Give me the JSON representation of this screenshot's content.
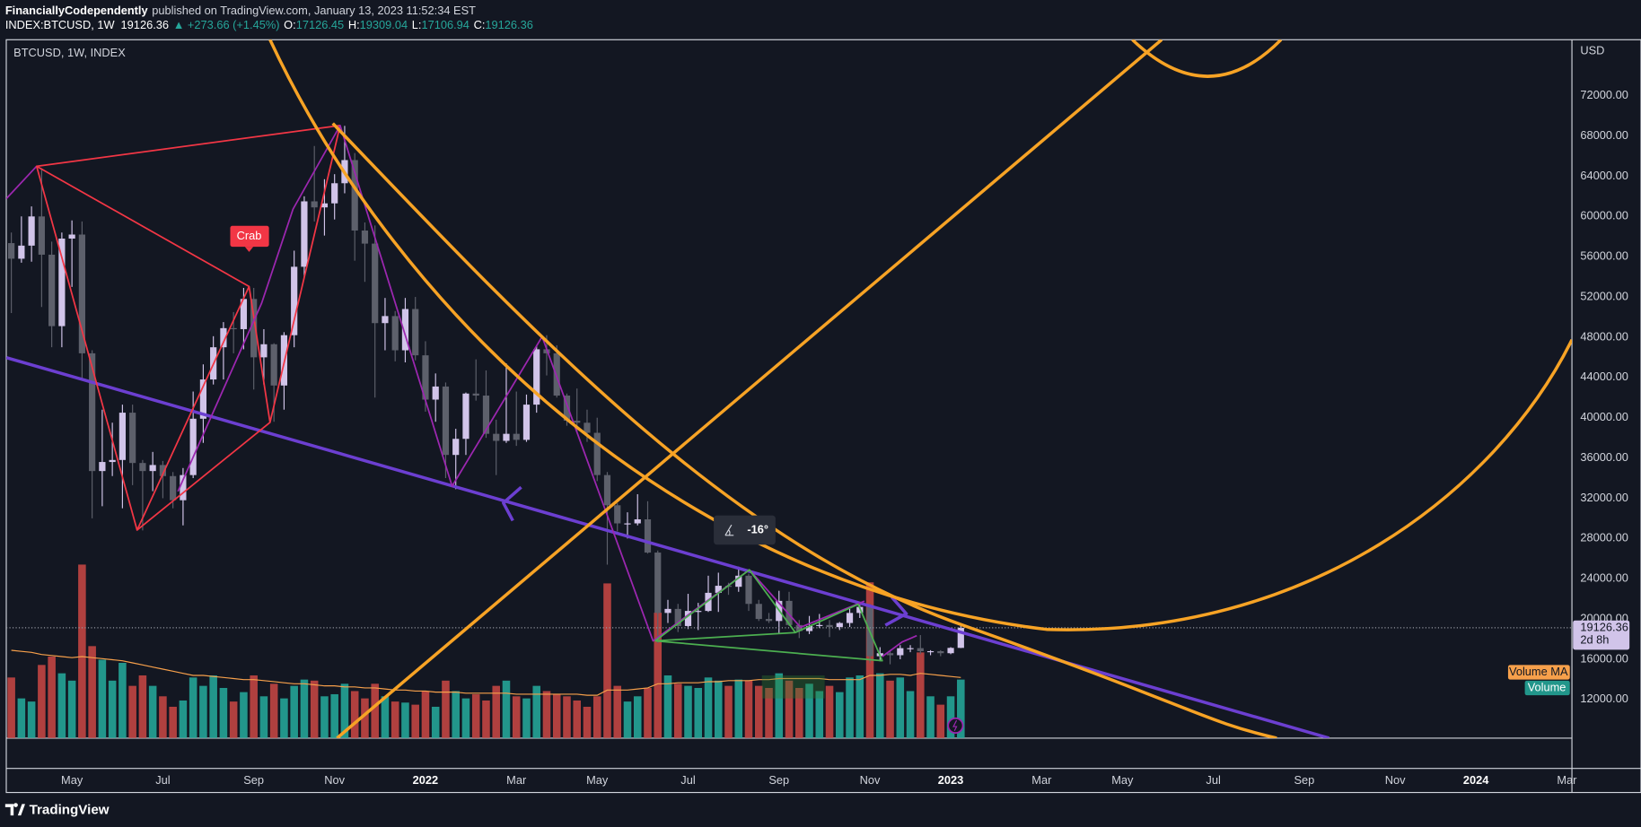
{
  "header": {
    "author": "FinanciallyCodependently",
    "published": "published on TradingView.com, January 13, 2023 11:52:34 EST",
    "symbol": "INDEX:BTCUSD, 1W",
    "last": "19126.36",
    "change": "▲ +273.66 (+1.45%)",
    "ohlc": [
      {
        "label": "O:",
        "value": "17126.45"
      },
      {
        "label": "H:",
        "value": "19309.04"
      },
      {
        "label": "L:",
        "value": "17106.94"
      },
      {
        "label": "C:",
        "value": "19126.36"
      }
    ]
  },
  "chart_data": {
    "type": "candlestick",
    "title": "BTCUSD, 1W, INDEX",
    "y_axis_unit": "USD",
    "categories": [
      null,
      null,
      null,
      null,
      null,
      null,
      "May",
      null,
      null,
      null,
      null,
      null,
      null,
      null,
      null,
      "Jul",
      null,
      null,
      null,
      null,
      null,
      null,
      null,
      null,
      "Sep",
      null,
      null,
      null,
      null,
      null,
      null,
      null,
      "Nov",
      null,
      null,
      null,
      null,
      null,
      null,
      null,
      null,
      "2022",
      null,
      null,
      null,
      null,
      null,
      null,
      null,
      null,
      "Mar",
      null,
      null,
      null,
      null,
      null,
      null,
      null,
      "May",
      null,
      null,
      null,
      null,
      null,
      null,
      null,
      null,
      "Jul",
      null,
      null,
      null,
      null,
      null,
      null,
      null,
      null,
      "Sep",
      null,
      null,
      null,
      null,
      null,
      null,
      null,
      null,
      "Nov",
      null,
      null,
      null,
      null,
      null,
      null,
      null,
      "2023",
      null,
      null,
      null,
      null,
      null,
      null,
      null,
      null,
      "Mar",
      null,
      null,
      null,
      null,
      null,
      null,
      null,
      "May",
      null,
      null,
      null,
      null,
      null,
      null,
      null,
      null,
      "Jul",
      null,
      null,
      null,
      null,
      null,
      null,
      null,
      null,
      "Sep",
      null,
      null,
      null,
      null,
      null,
      null,
      null,
      null,
      "Nov",
      null,
      null,
      null,
      null,
      null,
      null,
      null,
      "2024",
      null,
      null,
      null,
      null,
      null,
      null,
      null,
      null,
      "Mar"
    ],
    "open": [
      57350,
      55800,
      57100,
      60000,
      56200,
      49100,
      57800,
      58200,
      46400,
      34700,
      35600,
      35800,
      40500,
      35500,
      34700,
      35300,
      34200,
      31800,
      34300,
      39900,
      43800,
      47000,
      48900,
      48800,
      51800,
      46000,
      47300,
      43200,
      48200,
      55000,
      61500,
      60900,
      61300,
      63300,
      65600,
      58600,
      57300,
      49400,
      50100,
      46700,
      50800,
      46200,
      41800,
      43100,
      36300,
      37900,
      42400,
      42200,
      38400,
      37700,
      38400,
      37800,
      41300,
      46800,
      46400,
      42200,
      39700,
      39500,
      38500,
      34300,
      31300,
      29500,
      29500,
      29900,
      26600,
      20600,
      21000,
      19300,
      20800,
      20800,
      22600,
      23300,
      23200,
      24300,
      21500,
      20000,
      19800,
      21800,
      19400,
      18800,
      19300,
      19400,
      19200,
      19600,
      20600,
      21200,
      16300,
      16600,
      16400,
      17100,
      17100,
      16800,
      16800,
      16600,
      17126.45,
      null,
      null,
      null,
      null,
      null,
      null,
      null,
      null,
      null,
      null,
      null,
      null,
      null,
      null,
      null,
      null,
      null,
      null,
      null,
      null,
      null,
      null,
      null,
      null,
      null,
      null,
      null,
      null,
      null,
      null,
      null,
      null,
      null,
      null,
      null,
      null,
      null,
      null,
      null,
      null,
      null,
      null,
      null,
      null,
      null,
      null,
      null,
      null,
      null,
      null,
      null,
      null,
      null,
      null,
      null,
      null,
      null,
      null,
      null,
      null
    ],
    "high": [
      58400,
      60000,
      61000,
      64800,
      57500,
      58400,
      59600,
      59500,
      46700,
      40800,
      39500,
      41300,
      41300,
      35800,
      36600,
      35700,
      34600,
      35000,
      42600,
      45300,
      48100,
      49500,
      50500,
      52900,
      52900,
      48800,
      47400,
      48500,
      56600,
      62000,
      67000,
      63700,
      64200,
      69000,
      66300,
      59400,
      59100,
      51900,
      50600,
      51900,
      52000,
      47600,
      44400,
      43500,
      38900,
      42500,
      45800,
      44700,
      39800,
      45400,
      42600,
      42300,
      47200,
      48200,
      47200,
      42400,
      42900,
      40800,
      40000,
      34600,
      31500,
      30600,
      32400,
      31700,
      26800,
      21900,
      21500,
      22500,
      21600,
      24300,
      24600,
      23600,
      25200,
      24500,
      21900,
      20600,
      22800,
      22700,
      19900,
      20300,
      20500,
      19900,
      19700,
      21000,
      21400,
      21500,
      17200,
      16900,
      17400,
      17400,
      18400,
      16900,
      16900,
      17200,
      19309.04,
      null,
      null,
      null,
      null,
      null,
      null,
      null,
      null,
      null,
      null,
      null,
      null,
      null,
      null,
      null,
      null,
      null,
      null,
      null,
      null,
      null,
      null,
      null,
      null,
      null,
      null,
      null,
      null,
      null,
      null,
      null,
      null,
      null,
      null,
      null,
      null,
      null,
      null,
      null,
      null,
      null,
      null,
      null,
      null,
      null,
      null,
      null,
      null,
      null,
      null,
      null,
      null,
      null,
      null,
      null,
      null,
      null,
      null,
      null,
      null
    ],
    "low": [
      50400,
      55400,
      55500,
      51000,
      47000,
      47000,
      53000,
      43800,
      30000,
      31200,
      34200,
      31000,
      33300,
      28800,
      32700,
      32000,
      31000,
      29300,
      34000,
      37500,
      43300,
      43800,
      46400,
      46800,
      42800,
      43300,
      39600,
      40800,
      47000,
      53900,
      59500,
      58100,
      59700,
      62300,
      55600,
      53500,
      42000,
      46700,
      45600,
      45500,
      45700,
      40600,
      39600,
      34000,
      32900,
      36300,
      41700,
      38000,
      34300,
      37500,
      37200,
      37600,
      40500,
      44200,
      42000,
      39200,
      38600,
      37600,
      33700,
      25400,
      28700,
      28000,
      29300,
      26500,
      17600,
      19600,
      18700,
      19000,
      18900,
      20700,
      20700,
      22400,
      22700,
      20800,
      19800,
      19600,
      18600,
      19300,
      18100,
      18500,
      19100,
      18200,
      18900,
      19200,
      20100,
      15600,
      15800,
      15500,
      16000,
      16700,
      16500,
      16400,
      16300,
      16500,
      17106.94,
      null,
      null,
      null,
      null,
      null,
      null,
      null,
      null,
      null,
      null,
      null,
      null,
      null,
      null,
      null,
      null,
      null,
      null,
      null,
      null,
      null,
      null,
      null,
      null,
      null,
      null,
      null,
      null,
      null,
      null,
      null,
      null,
      null,
      null,
      null,
      null,
      null,
      null,
      null,
      null,
      null,
      null,
      null,
      null,
      null,
      null,
      null,
      null,
      null,
      null,
      null,
      null,
      null,
      null,
      null,
      null,
      null,
      null,
      null,
      null
    ],
    "close": [
      55800,
      57100,
      60000,
      56200,
      49100,
      57800,
      58200,
      46400,
      34700,
      35600,
      35800,
      40500,
      35500,
      34700,
      35300,
      34200,
      31800,
      34300,
      39900,
      43800,
      47000,
      48900,
      48800,
      51800,
      46000,
      47300,
      43200,
      48200,
      55000,
      61500,
      60900,
      61300,
      63300,
      65600,
      58600,
      57300,
      49400,
      50100,
      46700,
      50800,
      46200,
      41800,
      43100,
      36300,
      37900,
      42400,
      42200,
      38400,
      37700,
      38400,
      37800,
      41300,
      46800,
      46400,
      42200,
      39700,
      39500,
      38500,
      34300,
      31300,
      29500,
      29500,
      29900,
      26600,
      20600,
      21000,
      19300,
      20800,
      20800,
      22600,
      23300,
      23200,
      24300,
      21500,
      20000,
      19800,
      21800,
      19400,
      18800,
      19300,
      19400,
      19200,
      19600,
      20600,
      21200,
      16300,
      16600,
      16400,
      17100,
      17100,
      16800,
      16800,
      16600,
      17126.45,
      19126.36,
      null,
      null,
      null,
      null,
      null,
      null,
      null,
      null,
      null,
      null,
      null,
      null,
      null,
      null,
      null,
      null,
      null,
      null,
      null,
      null,
      null,
      null,
      null,
      null,
      null,
      null,
      null,
      null,
      null,
      null,
      null,
      null,
      null,
      null,
      null,
      null,
      null,
      null,
      null,
      null,
      null,
      null,
      null,
      null,
      null,
      null,
      null,
      null,
      null,
      null,
      null,
      null,
      null,
      null,
      null,
      null,
      null,
      null,
      null,
      null
    ],
    "volume": [
      58,
      38,
      35,
      70,
      78,
      62,
      55,
      166,
      88,
      75,
      55,
      72,
      50,
      60,
      50,
      40,
      30,
      36,
      58,
      50,
      60,
      48,
      35,
      44,
      60,
      40,
      52,
      38,
      50,
      56,
      55,
      40,
      42,
      52,
      45,
      38,
      52,
      40,
      35,
      34,
      32,
      45,
      30,
      55,
      45,
      38,
      42,
      36,
      50,
      55,
      40,
      38,
      50,
      45,
      42,
      40,
      36,
      30,
      40,
      148,
      50,
      35,
      40,
      48,
      120,
      60,
      52,
      50,
      48,
      58,
      55,
      50,
      56,
      55,
      50,
      48,
      62,
      55,
      48,
      52,
      45,
      50,
      44,
      58,
      60,
      149,
      62,
      55,
      58,
      45,
      82,
      40,
      32,
      40,
      56,
      null,
      null,
      null,
      null,
      null,
      null,
      null,
      null,
      null,
      null,
      null,
      null,
      null,
      null,
      null,
      null,
      null,
      null,
      null,
      null,
      null,
      null,
      null,
      null,
      null,
      null,
      null,
      null,
      null,
      null,
      null,
      null,
      null,
      null,
      null,
      null,
      null,
      null,
      null,
      null,
      null,
      null,
      null,
      null,
      null,
      null,
      null,
      null,
      null,
      null,
      null,
      null,
      null,
      null,
      null,
      null,
      null,
      null,
      null,
      null
    ],
    "volume_ma": [
      84,
      83,
      82,
      80,
      79,
      78,
      77,
      78,
      77,
      76,
      75,
      74,
      72,
      70,
      68,
      66,
      64,
      62,
      60,
      60,
      59,
      58,
      57,
      56,
      56,
      55,
      54,
      53,
      52,
      52,
      51,
      50,
      50,
      49,
      49,
      48,
      48,
      47,
      46,
      46,
      45,
      45,
      44,
      44,
      44,
      43,
      43,
      43,
      43,
      43,
      42,
      42,
      42,
      42,
      42,
      42,
      42,
      41,
      41,
      46,
      46,
      46,
      47,
      48,
      52,
      52,
      53,
      53,
      53,
      54,
      54,
      55,
      55,
      55,
      56,
      56,
      57,
      57,
      57,
      57,
      57,
      56,
      56,
      56,
      56,
      60,
      60,
      61,
      61,
      60,
      62,
      61,
      60,
      59,
      58,
      null,
      null,
      null,
      null,
      null,
      null,
      null,
      null,
      null,
      null,
      null,
      null,
      null,
      null,
      null,
      null,
      null,
      null,
      null,
      null,
      null,
      null,
      null,
      null,
      null,
      null,
      null,
      null,
      null,
      null,
      null,
      null,
      null,
      null,
      null,
      null,
      null,
      null,
      null,
      null,
      null,
      null,
      null,
      null,
      null,
      null,
      null,
      null,
      null,
      null,
      null,
      null,
      null,
      null,
      null,
      null,
      null,
      null,
      null,
      null
    ],
    "ylim": [
      8160,
      77560
    ],
    "yticks": [
      {
        "value": 12000,
        "label": "12000.00"
      },
      {
        "value": 16000,
        "label": "16000.00"
      },
      {
        "value": 20000,
        "label": "20000.00"
      },
      {
        "value": 24000,
        "label": "24000.00"
      },
      {
        "value": 28000,
        "label": "28000.00"
      },
      {
        "value": 32000,
        "label": "32000.00"
      },
      {
        "value": 36000,
        "label": "36000.00"
      },
      {
        "value": 40000,
        "label": "40000.00"
      },
      {
        "value": 44000,
        "label": "44000.00"
      },
      {
        "value": 48000,
        "label": "48000.00"
      },
      {
        "value": 52000,
        "label": "52000.00"
      },
      {
        "value": 56000,
        "label": "56000.00"
      },
      {
        "value": 60000,
        "label": "60000.00"
      },
      {
        "value": 64000,
        "label": "64000.00"
      },
      {
        "value": 68000,
        "label": "68000.00"
      },
      {
        "value": 72000,
        "label": "72000.00"
      }
    ],
    "up_color": "#d1c4e9",
    "down_color": "#5d606b",
    "volume_up_color": "#22968b",
    "volume_down_color": "#b0403f",
    "volume_ma_color": "#f7a04b",
    "volume_name": "Volume",
    "volume_ma_name": "Volume MA",
    "last_price_label": "19126.36",
    "countdown": "2d 8h",
    "annotations": {
      "pattern": "Crab",
      "angle": "-16°"
    }
  },
  "footer": {
    "brand": "TradingView"
  }
}
